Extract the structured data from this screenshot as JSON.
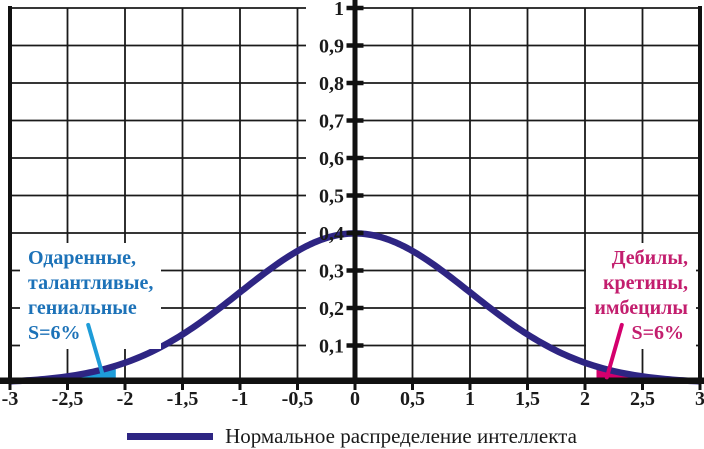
{
  "chart_data": {
    "type": "line",
    "title": "",
    "xlabel": "",
    "ylabel": "",
    "xlim": [
      -3,
      3
    ],
    "ylim": [
      0,
      1
    ],
    "grid": true,
    "legend_position": "bottom",
    "distribution": {
      "mean": 0,
      "std": 1,
      "peak": 0.3989
    },
    "points": [
      [
        -3,
        0.0044
      ],
      [
        -2.75,
        0.0091
      ],
      [
        -2.5,
        0.0175
      ],
      [
        -2.25,
        0.0317
      ],
      [
        -2,
        0.054
      ],
      [
        -1.75,
        0.0863
      ],
      [
        -1.5,
        0.1295
      ],
      [
        -1.25,
        0.1826
      ],
      [
        -1,
        0.242
      ],
      [
        -0.75,
        0.3011
      ],
      [
        -0.5,
        0.3521
      ],
      [
        -0.25,
        0.3867
      ],
      [
        0,
        0.3989
      ],
      [
        0.25,
        0.3867
      ],
      [
        0.5,
        0.3521
      ],
      [
        0.75,
        0.3011
      ],
      [
        1,
        0.242
      ],
      [
        1.25,
        0.1826
      ],
      [
        1.5,
        0.1295
      ],
      [
        1.75,
        0.0863
      ],
      [
        2,
        0.054
      ],
      [
        2.25,
        0.0317
      ],
      [
        2.5,
        0.0175
      ],
      [
        2.75,
        0.0091
      ],
      [
        3,
        0.0044
      ]
    ],
    "line_color": "#2e2583",
    "grid_color": "#1a1a1a",
    "axis_color": "#111111",
    "x_tick_values": [
      -3,
      -2.5,
      -2,
      -1.5,
      -1,
      -0.5,
      0,
      0.5,
      1,
      1.5,
      2,
      2.5,
      3
    ],
    "x_tick_labels": [
      "-3",
      "-2,5",
      "-2",
      "-1,5",
      "-1",
      "-0,5",
      "0",
      "0,5",
      "1",
      "1,5",
      "2",
      "2,5",
      "3"
    ],
    "y_tick_values": [
      0.1,
      0.2,
      0.3,
      0.4,
      0.5,
      0.6,
      0.7,
      0.8,
      0.9,
      1
    ],
    "y_tick_labels": [
      "0,1",
      "0,2",
      "0,3",
      "0,4",
      "0,5",
      "0,6",
      "0,7",
      "0,8",
      "0,9",
      "1"
    ],
    "regions": [
      {
        "name": "left-tail",
        "from": -3,
        "to": -2.08,
        "color": "#1e9cd8",
        "share": "S=6%"
      },
      {
        "name": "right-tail",
        "from": 2.1,
        "to": 3,
        "color": "#d4006d",
        "share": "S=6%"
      }
    ],
    "annotations": [
      {
        "lines": [
          "Одаренные,",
          "талантливые,",
          "гениальные",
          "S=6%"
        ],
        "color": "#1c72b8",
        "callout": {
          "from": [
            -2.32,
            0.155
          ],
          "to": [
            -2.2,
            0.028
          ],
          "color": "#1e9cd8"
        }
      },
      {
        "lines": [
          "Дебилы,",
          "кретины,",
          "имбецилы",
          "S=6%"
        ],
        "color": "#c31e6e",
        "callout": {
          "from": [
            2.32,
            0.155
          ],
          "to": [
            2.19,
            0.015
          ],
          "color": "#d4006d"
        }
      }
    ]
  },
  "legend": {
    "label": "Нормальное распределение интеллекта",
    "line_color": "#2e2583"
  }
}
